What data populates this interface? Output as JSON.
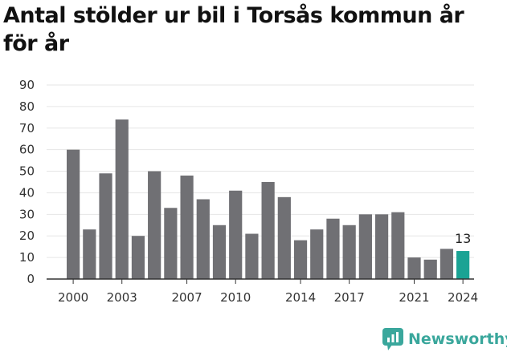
{
  "title": "Antal stölder ur bil i Torsås kommun år för år",
  "brand": "Newsworthy",
  "colors": {
    "bar": "#707074",
    "highlight": "#1aa394",
    "grid": "#e6e6e6",
    "axis": "#333333",
    "brand": "#3aa79c"
  },
  "chart_data": {
    "type": "bar",
    "categories": [
      "2000",
      "2001",
      "2002",
      "2003",
      "2004",
      "2005",
      "2006",
      "2007",
      "2008",
      "2009",
      "2010",
      "2011",
      "2012",
      "2013",
      "2014",
      "2015",
      "2016",
      "2017",
      "2018",
      "2019",
      "2020",
      "2021",
      "2022",
      "2023",
      "2024"
    ],
    "values": [
      60,
      23,
      49,
      74,
      20,
      50,
      33,
      48,
      37,
      25,
      41,
      21,
      45,
      38,
      18,
      23,
      28,
      25,
      30,
      30,
      31,
      10,
      9,
      14,
      13
    ],
    "x_tick_labels": [
      "2000",
      "2003",
      "2007",
      "2010",
      "2014",
      "2017",
      "2021",
      "2024"
    ],
    "y_ticks": [
      0,
      10,
      20,
      30,
      40,
      50,
      60,
      70,
      80,
      90
    ],
    "ylim": [
      0,
      90
    ],
    "grid": true,
    "highlight_category": "2024",
    "data_labels": [
      {
        "category": "2024",
        "text": "13"
      }
    ]
  }
}
